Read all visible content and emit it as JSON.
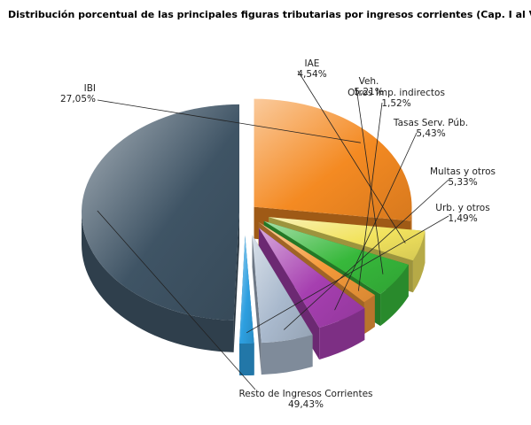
{
  "chart_data": {
    "type": "pie",
    "title": "Distribución porcentual de las principales figuras tributarias por ingresos corrientes (Cap. I al V)",
    "unit": "%",
    "slices": [
      {
        "label": "IBI",
        "value": 27.05,
        "display": "27,05%",
        "color": "#f48a22"
      },
      {
        "label": "IAE",
        "value": 4.54,
        "display": "4,54%",
        "color": "#f2e35e"
      },
      {
        "label": "Veh.",
        "value": 5.21,
        "display": "5,21%",
        "color": "#37b83b"
      },
      {
        "label": "Otros Imp. indirectos",
        "value": 1.52,
        "display": "1,52%",
        "color": "#f59a3a"
      },
      {
        "label": "Tasas Serv. Púb.",
        "value": 5.43,
        "display": "5,43%",
        "color": "#a63fb0"
      },
      {
        "label": "Multas y otros",
        "value": 5.33,
        "display": "5,33%",
        "color": "#a9b9cd"
      },
      {
        "label": "Urb. y otros",
        "value": 1.49,
        "display": "1,49%",
        "color": "#2d9fe0"
      },
      {
        "label": "Resto de Ingresos Corrientes",
        "value": 49.43,
        "display": "49,43%",
        "color": "#3f5465"
      }
    ]
  }
}
